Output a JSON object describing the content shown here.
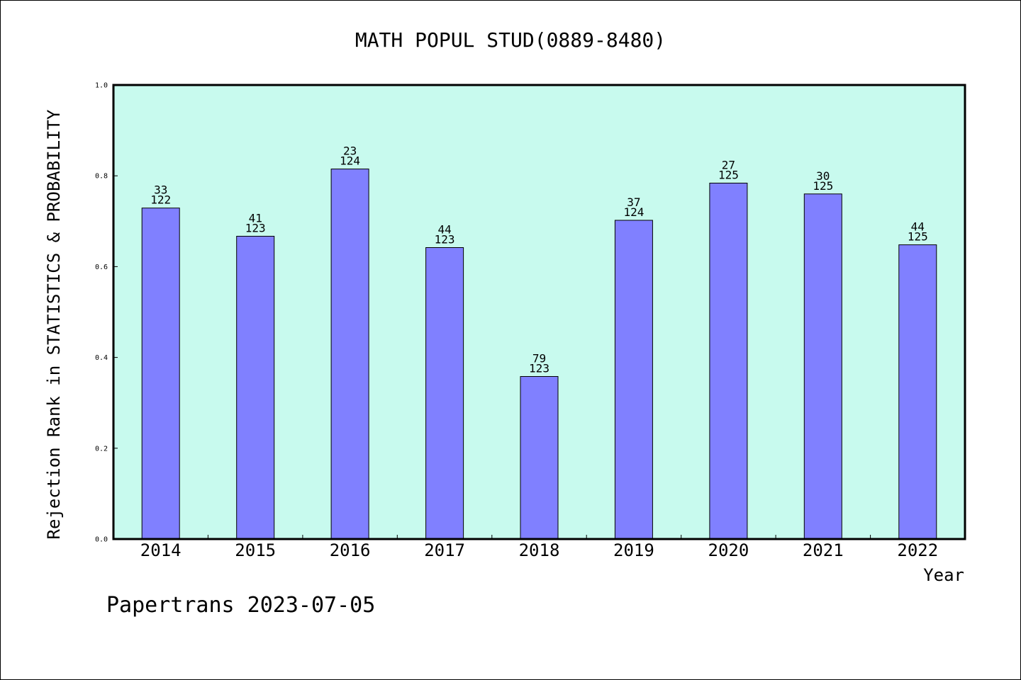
{
  "chart_data": {
    "type": "bar",
    "title": "MATH POPUL STUD(0889-8480)",
    "xlabel": "Year",
    "ylabel": "Rejection Rank in STATISTICS & PROBABILITY",
    "categories": [
      "2014",
      "2015",
      "2016",
      "2017",
      "2018",
      "2019",
      "2020",
      "2021",
      "2022"
    ],
    "values": [
      0.729,
      0.667,
      0.815,
      0.642,
      0.358,
      0.702,
      0.784,
      0.76,
      0.648
    ],
    "ranks": [
      "33",
      "41",
      "23",
      "44",
      "79",
      "37",
      "27",
      "30",
      "44"
    ],
    "totals": [
      "122",
      "123",
      "124",
      "123",
      "123",
      "124",
      "125",
      "125",
      "125"
    ],
    "ylim": [
      0,
      1.0
    ],
    "yticks": [
      "0.0",
      "0.2",
      "0.4",
      "0.6",
      "0.8",
      "1.0"
    ],
    "grid": false,
    "legend": "none",
    "colors": {
      "plot_background": "#c8faee",
      "bar_fill": "#8080ff",
      "bar_edge": "#000000"
    }
  },
  "footer": {
    "text": "Papertrans 2023-07-05"
  }
}
